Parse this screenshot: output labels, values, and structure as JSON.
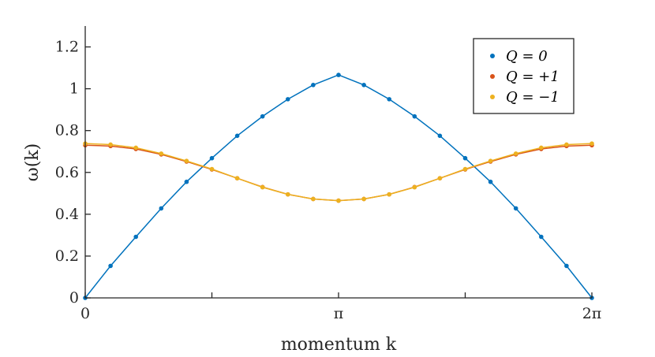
{
  "chart_data": {
    "type": "line",
    "xlabel": "momentum k",
    "ylabel": "ω(k)",
    "xlim": [
      0,
      6.2832
    ],
    "ylim": [
      0,
      1.3
    ],
    "x_ticks": [
      0,
      1.5708,
      3.1416,
      4.7124,
      6.2832
    ],
    "x_tick_labels": [
      "0",
      "",
      "π",
      "",
      "2π"
    ],
    "y_ticks": [
      0,
      0.2,
      0.4,
      0.6,
      0.8,
      1,
      1.2
    ],
    "y_tick_labels": [
      "0",
      "0.2",
      "0.4",
      "0.6",
      "0.8",
      "1",
      "1.2"
    ],
    "grid": false,
    "legend_position": "top-right",
    "x": [
      0,
      0.3142,
      0.6283,
      0.9425,
      1.2566,
      1.5708,
      1.885,
      2.1991,
      2.5133,
      2.8274,
      3.1416,
      3.4558,
      3.7699,
      4.0841,
      4.3982,
      4.7124,
      5.0265,
      5.3407,
      5.6549,
      5.969,
      6.2832
    ],
    "series": [
      {
        "name": "Q = 0",
        "color": "#0072BD",
        "values": [
          0,
          0.153,
          0.292,
          0.428,
          0.555,
          0.668,
          0.775,
          0.868,
          0.95,
          1.018,
          1.066,
          1.018,
          0.95,
          0.868,
          0.775,
          0.668,
          0.555,
          0.428,
          0.292,
          0.153,
          0
        ]
      },
      {
        "name": "Q = +1",
        "color": "#D95319",
        "values": [
          0.73,
          0.726,
          0.712,
          0.686,
          0.652,
          0.614,
          0.572,
          0.53,
          0.495,
          0.473,
          0.465,
          0.473,
          0.495,
          0.53,
          0.572,
          0.614,
          0.652,
          0.686,
          0.712,
          0.726,
          0.73
        ]
      },
      {
        "name": "Q = −1",
        "color": "#EDB120",
        "values": [
          0.738,
          0.733,
          0.718,
          0.69,
          0.655,
          0.616,
          0.572,
          0.529,
          0.495,
          0.473,
          0.465,
          0.473,
          0.495,
          0.529,
          0.572,
          0.616,
          0.655,
          0.69,
          0.718,
          0.733,
          0.738
        ]
      }
    ]
  }
}
